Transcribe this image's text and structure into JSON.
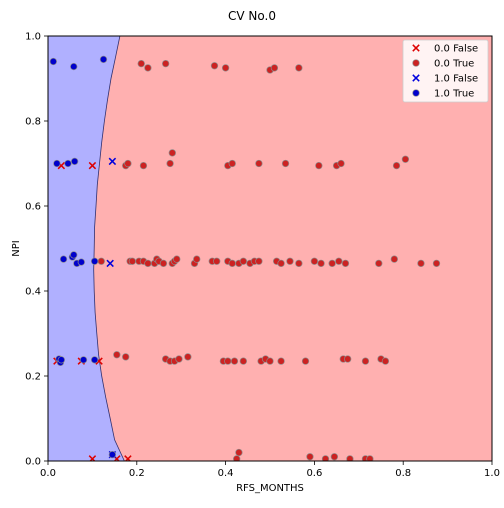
{
  "chart_data": {
    "type": "scatter",
    "title": "CV No.0",
    "xlabel": "RFS_MONTHS",
    "ylabel": "NPI",
    "xlim": [
      0.0,
      1.0
    ],
    "ylim": [
      0.0,
      1.0
    ],
    "xticks": [
      "0.0",
      "0.2",
      "0.4",
      "0.6",
      "0.8",
      "1.0"
    ],
    "yticks": [
      "0.0",
      "0.2",
      "0.4",
      "0.6",
      "0.8",
      "1.0"
    ],
    "grid": false,
    "legend_position": "top-right",
    "regions": [
      {
        "class": "1.0",
        "color": "#b0b0ff"
      },
      {
        "class": "0.0",
        "color": "#ffb0b0"
      }
    ],
    "decision_boundary": [
      [
        0.162,
        1.0
      ],
      [
        0.152,
        0.95
      ],
      [
        0.142,
        0.9
      ],
      [
        0.134,
        0.85
      ],
      [
        0.127,
        0.8
      ],
      [
        0.121,
        0.75
      ],
      [
        0.116,
        0.7
      ],
      [
        0.111,
        0.65
      ],
      [
        0.108,
        0.6
      ],
      [
        0.105,
        0.55
      ],
      [
        0.104,
        0.5
      ],
      [
        0.103,
        0.45
      ],
      [
        0.104,
        0.4
      ],
      [
        0.106,
        0.35
      ],
      [
        0.11,
        0.3
      ],
      [
        0.114,
        0.25
      ],
      [
        0.121,
        0.2
      ],
      [
        0.13,
        0.15
      ],
      [
        0.14,
        0.1
      ],
      [
        0.15,
        0.05
      ],
      [
        0.172,
        0.0
      ]
    ],
    "series": [
      {
        "name": "0.0   False",
        "marker": "x",
        "color": "#dd0000",
        "points": [
          [
            0.03,
            0.695
          ],
          [
            0.1,
            0.695
          ],
          [
            0.02,
            0.235
          ],
          [
            0.075,
            0.235
          ],
          [
            0.115,
            0.235
          ],
          [
            0.1,
            0.005
          ],
          [
            0.155,
            0.005
          ],
          [
            0.18,
            0.005
          ]
        ]
      },
      {
        "name": "0.0   True",
        "marker": "o",
        "color": "#cc2222",
        "points": [
          [
            0.21,
            0.935
          ],
          [
            0.225,
            0.925
          ],
          [
            0.265,
            0.935
          ],
          [
            0.375,
            0.93
          ],
          [
            0.4,
            0.925
          ],
          [
            0.5,
            0.92
          ],
          [
            0.51,
            0.925
          ],
          [
            0.565,
            0.925
          ],
          [
            0.175,
            0.695
          ],
          [
            0.18,
            0.7
          ],
          [
            0.215,
            0.695
          ],
          [
            0.275,
            0.7
          ],
          [
            0.28,
            0.725
          ],
          [
            0.405,
            0.695
          ],
          [
            0.415,
            0.7
          ],
          [
            0.475,
            0.7
          ],
          [
            0.535,
            0.7
          ],
          [
            0.61,
            0.695
          ],
          [
            0.65,
            0.695
          ],
          [
            0.66,
            0.7
          ],
          [
            0.785,
            0.695
          ],
          [
            0.805,
            0.71
          ],
          [
            0.12,
            0.47
          ],
          [
            0.185,
            0.47
          ],
          [
            0.19,
            0.47
          ],
          [
            0.205,
            0.47
          ],
          [
            0.215,
            0.47
          ],
          [
            0.225,
            0.465
          ],
          [
            0.24,
            0.465
          ],
          [
            0.245,
            0.475
          ],
          [
            0.25,
            0.47
          ],
          [
            0.26,
            0.465
          ],
          [
            0.28,
            0.465
          ],
          [
            0.285,
            0.47
          ],
          [
            0.29,
            0.475
          ],
          [
            0.33,
            0.465
          ],
          [
            0.335,
            0.475
          ],
          [
            0.37,
            0.47
          ],
          [
            0.38,
            0.47
          ],
          [
            0.405,
            0.47
          ],
          [
            0.415,
            0.465
          ],
          [
            0.43,
            0.465
          ],
          [
            0.44,
            0.47
          ],
          [
            0.455,
            0.465
          ],
          [
            0.465,
            0.47
          ],
          [
            0.475,
            0.47
          ],
          [
            0.515,
            0.47
          ],
          [
            0.525,
            0.465
          ],
          [
            0.545,
            0.47
          ],
          [
            0.565,
            0.465
          ],
          [
            0.6,
            0.47
          ],
          [
            0.615,
            0.465
          ],
          [
            0.64,
            0.465
          ],
          [
            0.655,
            0.47
          ],
          [
            0.67,
            0.465
          ],
          [
            0.745,
            0.465
          ],
          [
            0.78,
            0.475
          ],
          [
            0.84,
            0.465
          ],
          [
            0.875,
            0.465
          ],
          [
            0.155,
            0.25
          ],
          [
            0.175,
            0.245
          ],
          [
            0.265,
            0.24
          ],
          [
            0.275,
            0.235
          ],
          [
            0.285,
            0.235
          ],
          [
            0.295,
            0.24
          ],
          [
            0.315,
            0.245
          ],
          [
            0.395,
            0.235
          ],
          [
            0.405,
            0.235
          ],
          [
            0.42,
            0.235
          ],
          [
            0.44,
            0.235
          ],
          [
            0.48,
            0.235
          ],
          [
            0.49,
            0.24
          ],
          [
            0.5,
            0.235
          ],
          [
            0.525,
            0.235
          ],
          [
            0.58,
            0.235
          ],
          [
            0.665,
            0.24
          ],
          [
            0.675,
            0.24
          ],
          [
            0.715,
            0.235
          ],
          [
            0.75,
            0.24
          ],
          [
            0.76,
            0.235
          ],
          [
            0.425,
            0.005
          ],
          [
            0.43,
            0.02
          ],
          [
            0.59,
            0.01
          ],
          [
            0.625,
            0.005
          ],
          [
            0.645,
            0.01
          ],
          [
            0.68,
            0.005
          ],
          [
            0.715,
            0.005
          ],
          [
            0.725,
            0.005
          ]
        ]
      },
      {
        "name": "1.0   False",
        "marker": "x",
        "color": "#0000dd",
        "points": [
          [
            0.145,
            0.705
          ],
          [
            0.14,
            0.465
          ],
          [
            0.145,
            0.015
          ]
        ]
      },
      {
        "name": "1.0   True",
        "marker": "o",
        "color": "#0000cc",
        "points": [
          [
            0.012,
            0.94
          ],
          [
            0.058,
            0.928
          ],
          [
            0.125,
            0.945
          ],
          [
            0.02,
            0.7
          ],
          [
            0.045,
            0.7
          ],
          [
            0.06,
            0.705
          ],
          [
            0.035,
            0.475
          ],
          [
            0.055,
            0.48
          ],
          [
            0.058,
            0.485
          ],
          [
            0.065,
            0.465
          ],
          [
            0.075,
            0.468
          ],
          [
            0.105,
            0.47
          ],
          [
            0.025,
            0.24
          ],
          [
            0.028,
            0.232
          ],
          [
            0.03,
            0.238
          ],
          [
            0.08,
            0.238
          ],
          [
            0.105,
            0.238
          ],
          [
            0.145,
            0.015
          ]
        ]
      }
    ]
  }
}
